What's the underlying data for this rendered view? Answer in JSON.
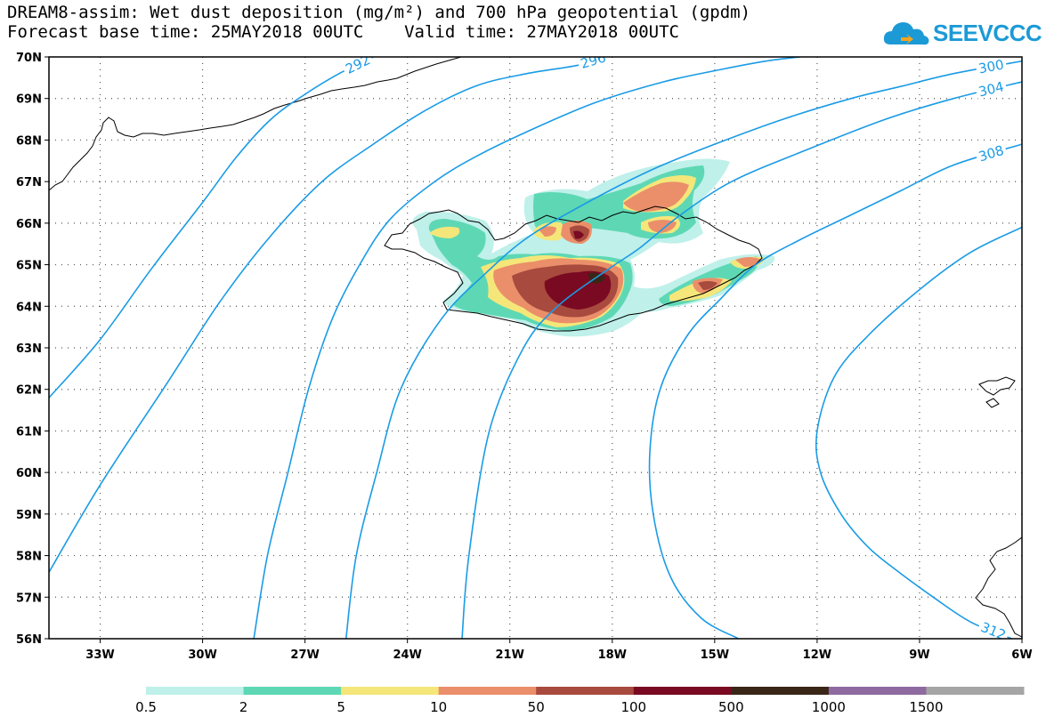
{
  "title": {
    "line1": "DREAM8-assim: Wet dust deposition (mg/m²) and 700 hPa geopotential (gpdm)",
    "line2": "Forecast base time: 25MAY2018 00UTC    Valid time: 27MAY2018 00UTC"
  },
  "logo": {
    "text": "SEEVCCC",
    "icon": "cloud-icon",
    "color": "#1c9ad6"
  },
  "map": {
    "lon_range": [
      -34.5,
      -6
    ],
    "lat_range": [
      56,
      70
    ],
    "lon_ticks": [
      {
        "value": -33,
        "label": "33W"
      },
      {
        "value": -30,
        "label": "30W"
      },
      {
        "value": -27,
        "label": "27W"
      },
      {
        "value": -24,
        "label": "24W"
      },
      {
        "value": -21,
        "label": "21W"
      },
      {
        "value": -18,
        "label": "18W"
      },
      {
        "value": -15,
        "label": "15W"
      },
      {
        "value": -12,
        "label": "12W"
      },
      {
        "value": -9,
        "label": "9W"
      },
      {
        "value": -6,
        "label": "6W"
      }
    ],
    "lat_ticks": [
      {
        "value": 70,
        "label": "70N"
      },
      {
        "value": 69,
        "label": "69N"
      },
      {
        "value": 68,
        "label": "68N"
      },
      {
        "value": 67,
        "label": "67N"
      },
      {
        "value": 66,
        "label": "66N"
      },
      {
        "value": 65,
        "label": "65N"
      },
      {
        "value": 64,
        "label": "64N"
      },
      {
        "value": 63,
        "label": "63N"
      },
      {
        "value": 62,
        "label": "62N"
      },
      {
        "value": 61,
        "label": "61N"
      },
      {
        "value": 60,
        "label": "60N"
      },
      {
        "value": 59,
        "label": "59N"
      },
      {
        "value": 58,
        "label": "58N"
      },
      {
        "value": 57,
        "label": "57N"
      },
      {
        "value": 56,
        "label": "56N"
      }
    ],
    "grid": "dotted",
    "contour_color": "#1a9be6",
    "contours": [
      {
        "label": "292",
        "points": [
          [
            -34.5,
            61.8
          ],
          [
            -33,
            63.2
          ],
          [
            -31.5,
            64.9
          ],
          [
            -30,
            66.5
          ],
          [
            -29,
            67.6
          ],
          [
            -28,
            68.5
          ],
          [
            -27,
            69.1
          ],
          [
            -26,
            69.6
          ],
          [
            -25,
            70
          ]
        ]
      },
      {
        "label": "296",
        "points": [
          [
            -34.5,
            57.6
          ],
          [
            -33,
            59.7
          ],
          [
            -31,
            62.2
          ],
          [
            -29.5,
            64.1
          ],
          [
            -28,
            65.7
          ],
          [
            -26.5,
            67
          ],
          [
            -25,
            67.9
          ],
          [
            -23.5,
            68.7
          ],
          [
            -22,
            69.3
          ],
          [
            -20.5,
            69.6
          ],
          [
            -19,
            69.8
          ],
          [
            -18.2,
            70
          ]
        ]
      },
      {
        "label": "",
        "points": [
          [
            -28.5,
            56
          ],
          [
            -28.1,
            58
          ],
          [
            -27.5,
            60
          ],
          [
            -26.9,
            62
          ],
          [
            -26.2,
            63.7
          ],
          [
            -25.4,
            65
          ],
          [
            -24.5,
            66.1
          ],
          [
            -23.2,
            67
          ],
          [
            -22,
            67.6
          ],
          [
            -20.5,
            68.2
          ],
          [
            -18.5,
            68.9
          ],
          [
            -16.5,
            69.4
          ],
          [
            -14.8,
            69.7
          ],
          [
            -13.5,
            69.9
          ],
          [
            -12.5,
            70
          ]
        ]
      },
      {
        "label": "300",
        "points": [
          [
            -25.8,
            56
          ],
          [
            -25.5,
            58
          ],
          [
            -24.9,
            60
          ],
          [
            -24.2,
            62
          ],
          [
            -23,
            63.7
          ],
          [
            -21.7,
            64.8
          ],
          [
            -20.4,
            65.7
          ],
          [
            -18.5,
            66.6
          ],
          [
            -16.8,
            67.3
          ],
          [
            -15,
            67.9
          ],
          [
            -13,
            68.5
          ],
          [
            -11,
            69
          ],
          [
            -9.5,
            69.3
          ],
          [
            -8,
            69.6
          ],
          [
            -6,
            69.9
          ]
        ]
      },
      {
        "label": "304",
        "points": [
          [
            -22.4,
            56
          ],
          [
            -22.2,
            58
          ],
          [
            -21.6,
            61
          ],
          [
            -20.6,
            63
          ],
          [
            -19.6,
            64
          ],
          [
            -18.1,
            64.9
          ],
          [
            -17.2,
            65.4
          ],
          [
            -16,
            66.2
          ],
          [
            -14.5,
            67
          ],
          [
            -12.5,
            67.7
          ],
          [
            -10,
            68.5
          ],
          [
            -8,
            69
          ],
          [
            -6,
            69.4
          ]
        ]
      },
      {
        "label": "308",
        "points": [
          [
            -14.3,
            56
          ],
          [
            -15.4,
            56.5
          ],
          [
            -16.3,
            57.5
          ],
          [
            -16.8,
            59
          ],
          [
            -16.9,
            60.5
          ],
          [
            -16.6,
            62
          ],
          [
            -15.8,
            63.3
          ],
          [
            -14.8,
            64.2
          ],
          [
            -13.8,
            65
          ],
          [
            -12.5,
            65.6
          ],
          [
            -11,
            66.2
          ],
          [
            -9.5,
            66.8
          ],
          [
            -8,
            67.4
          ],
          [
            -6,
            67.9
          ]
        ]
      },
      {
        "label": "312",
        "points": [
          [
            -6,
            65.9
          ],
          [
            -7.5,
            65.3
          ],
          [
            -9,
            64.4
          ],
          [
            -10.5,
            63.3
          ],
          [
            -11.5,
            62.3
          ],
          [
            -12,
            61
          ],
          [
            -11.9,
            60
          ],
          [
            -11.3,
            59
          ],
          [
            -10.5,
            58.2
          ],
          [
            -9.6,
            57.6
          ],
          [
            -8.6,
            57
          ],
          [
            -7.5,
            56.4
          ],
          [
            -6.3,
            56
          ]
        ]
      }
    ],
    "colorbar": {
      "colors": [
        "#bff0ea",
        "#5ed8b4",
        "#f5e67a",
        "#ea8f6a",
        "#a84a3e",
        "#7a0a22",
        "#3a2617",
        "#8e6aa0",
        "#a5a5a5"
      ],
      "labels": [
        "0.5",
        "2",
        "5",
        "10",
        "50",
        "100",
        "500",
        "1000",
        "1500"
      ]
    }
  }
}
